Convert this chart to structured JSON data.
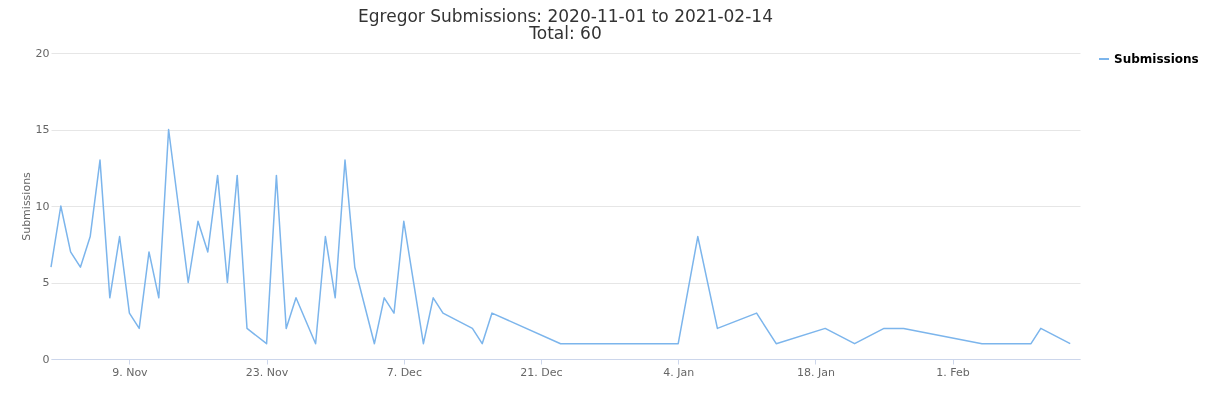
{
  "chart_data": {
    "type": "line",
    "title": "Egregor Submissions: 2020-11-01 to 2021-02-14",
    "subtitle": "Total: 60",
    "ylabel": "Submissions",
    "x": [
      "2020-11-01",
      "2020-11-02",
      "2020-11-03",
      "2020-11-04",
      "2020-11-05",
      "2020-11-06",
      "2020-11-07",
      "2020-11-08",
      "2020-11-09",
      "2020-11-10",
      "2020-11-11",
      "2020-11-12",
      "2020-11-13",
      "2020-11-15",
      "2020-11-16",
      "2020-11-17",
      "2020-11-18",
      "2020-11-19",
      "2020-11-20",
      "2020-11-21",
      "2020-11-23",
      "2020-11-24",
      "2020-11-25",
      "2020-11-26",
      "2020-11-28",
      "2020-11-29",
      "2020-11-30",
      "2020-12-01",
      "2020-12-02",
      "2020-12-04",
      "2020-12-05",
      "2020-12-06",
      "2020-12-07",
      "2020-12-09",
      "2020-12-10",
      "2020-12-11",
      "2020-12-14",
      "2020-12-15",
      "2020-12-16",
      "2020-12-23",
      "2021-01-04",
      "2021-01-06",
      "2021-01-08",
      "2021-01-12",
      "2021-01-14",
      "2021-01-19",
      "2021-01-22",
      "2021-01-25",
      "2021-01-27",
      "2021-02-04",
      "2021-02-09",
      "2021-02-10",
      "2021-02-13"
    ],
    "series": [
      {
        "name": "Submissions",
        "color": "#7cb5ec",
        "values": [
          6,
          10,
          7,
          6,
          8,
          13,
          4,
          8,
          3,
          2,
          7,
          4,
          15,
          5,
          9,
          7,
          12,
          5,
          12,
          2,
          1,
          12,
          2,
          4,
          1,
          8,
          4,
          13,
          6,
          1,
          4,
          3,
          9,
          1,
          4,
          3,
          2,
          1,
          3,
          1,
          1,
          8,
          2,
          3,
          1,
          2,
          1,
          2,
          2,
          1,
          1,
          2,
          1
        ]
      }
    ],
    "xlim": [
      "2020-11-01",
      "2021-02-14"
    ],
    "xticks": [
      {
        "value": "2020-11-09",
        "label": "9. Nov"
      },
      {
        "value": "2020-11-23",
        "label": "23. Nov"
      },
      {
        "value": "2020-12-07",
        "label": "7. Dec"
      },
      {
        "value": "2020-12-21",
        "label": "21. Dec"
      },
      {
        "value": "2021-01-04",
        "label": "4. Jan"
      },
      {
        "value": "2021-01-18",
        "label": "18. Jan"
      },
      {
        "value": "2021-02-01",
        "label": "1. Feb"
      }
    ],
    "ylim": [
      0,
      20
    ],
    "yticks": [
      0,
      5,
      10,
      15,
      20
    ],
    "grid": "y",
    "legend": "right",
    "marker": "none",
    "line_style": "solid"
  }
}
